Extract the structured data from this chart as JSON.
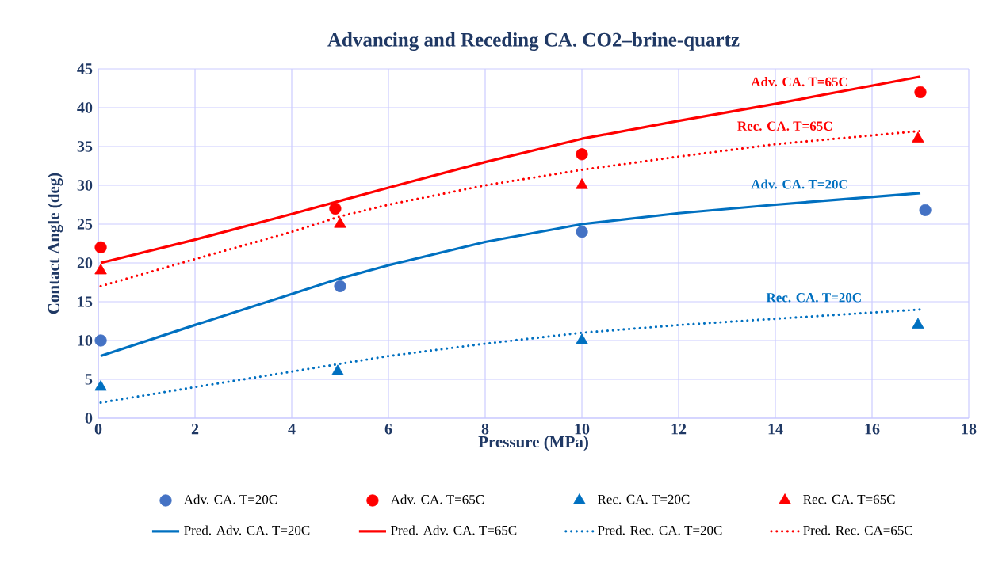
{
  "chart_data": {
    "type": "scatter",
    "title": "Advancing and Receding CA. CO2–brine-quartz",
    "xlabel": "Pressure (MPa)",
    "ylabel": "Contact Angle (deg)",
    "xlim": [
      0,
      18
    ],
    "ylim": [
      0,
      45
    ],
    "xticks": [
      0,
      2,
      4,
      6,
      8,
      10,
      12,
      14,
      16,
      18
    ],
    "yticks": [
      0,
      5,
      10,
      15,
      20,
      25,
      30,
      35,
      40,
      45
    ],
    "grid": true,
    "legend": "bottom",
    "series": [
      {
        "name": "Adv. CA. T=20C",
        "marker": "circle",
        "color": "#4472c4",
        "x": [
          0.05,
          5,
          10,
          17.1
        ],
        "values": [
          10,
          17,
          24,
          26.8
        ]
      },
      {
        "name": "Adv. CA. T=65C",
        "marker": "circle",
        "color": "#ff0000",
        "x": [
          0.05,
          4.9,
          10,
          17
        ],
        "values": [
          22,
          27,
          34,
          42
        ]
      },
      {
        "name": "Rec. CA. T=20C",
        "marker": "triangle",
        "color": "#0070c0",
        "x": [
          0.05,
          4.95,
          10,
          16.95
        ],
        "values": [
          4,
          6,
          10,
          12
        ]
      },
      {
        "name": "Rec. CA. T=65C",
        "marker": "triangle",
        "color": "#ff0000",
        "x": [
          0.05,
          5,
          10,
          16.95
        ],
        "values": [
          19,
          25,
          30,
          36
        ]
      },
      {
        "name": "Pred. Adv. CA. T=20C",
        "type": "line",
        "line_style": "solid",
        "color": "#0070c0",
        "x": [
          0.05,
          2,
          4,
          5,
          6,
          8,
          10,
          12,
          14,
          17
        ],
        "values": [
          8,
          12,
          16,
          18,
          19.7,
          22.7,
          25,
          26.4,
          27.5,
          29
        ]
      },
      {
        "name": "Pred. Adv. CA. T=65C",
        "type": "line",
        "line_style": "solid",
        "color": "#ff0000",
        "x": [
          0.05,
          2,
          4,
          5,
          6,
          8,
          10,
          12,
          14,
          17
        ],
        "values": [
          20,
          23,
          26.3,
          28,
          29.7,
          33,
          36,
          38.3,
          40.5,
          44
        ]
      },
      {
        "name": "Pred. Rec. CA. T=20C",
        "type": "line",
        "line_style": "dotted",
        "color": "#0070c0",
        "x": [
          0.05,
          2,
          4,
          5,
          6,
          8,
          10,
          12,
          14,
          17
        ],
        "values": [
          2,
          4,
          6,
          7,
          8,
          9.6,
          11,
          12,
          12.8,
          14
        ]
      },
      {
        "name": "Pred. Rec. CA=65C",
        "type": "line",
        "line_style": "dotted",
        "color": "#ff0000",
        "x": [
          0.05,
          2,
          4,
          5,
          6,
          8,
          10,
          12,
          14,
          17
        ],
        "values": [
          17,
          20.5,
          24,
          26,
          27.5,
          30,
          32,
          33.7,
          35.3,
          37
        ]
      }
    ],
    "annotations": [
      {
        "text": "Adv. CA. T=65C",
        "x": 14.5,
        "y": 41
      },
      {
        "text": "Rec. CA. T=65C",
        "x": 14.2,
        "y": 35.3
      },
      {
        "text": "Adv. CA. T=20C",
        "x": 14.5,
        "y": 27.8
      },
      {
        "text": "Rec. CA. T=20C",
        "x": 14.8,
        "y": 13.2
      }
    ]
  }
}
